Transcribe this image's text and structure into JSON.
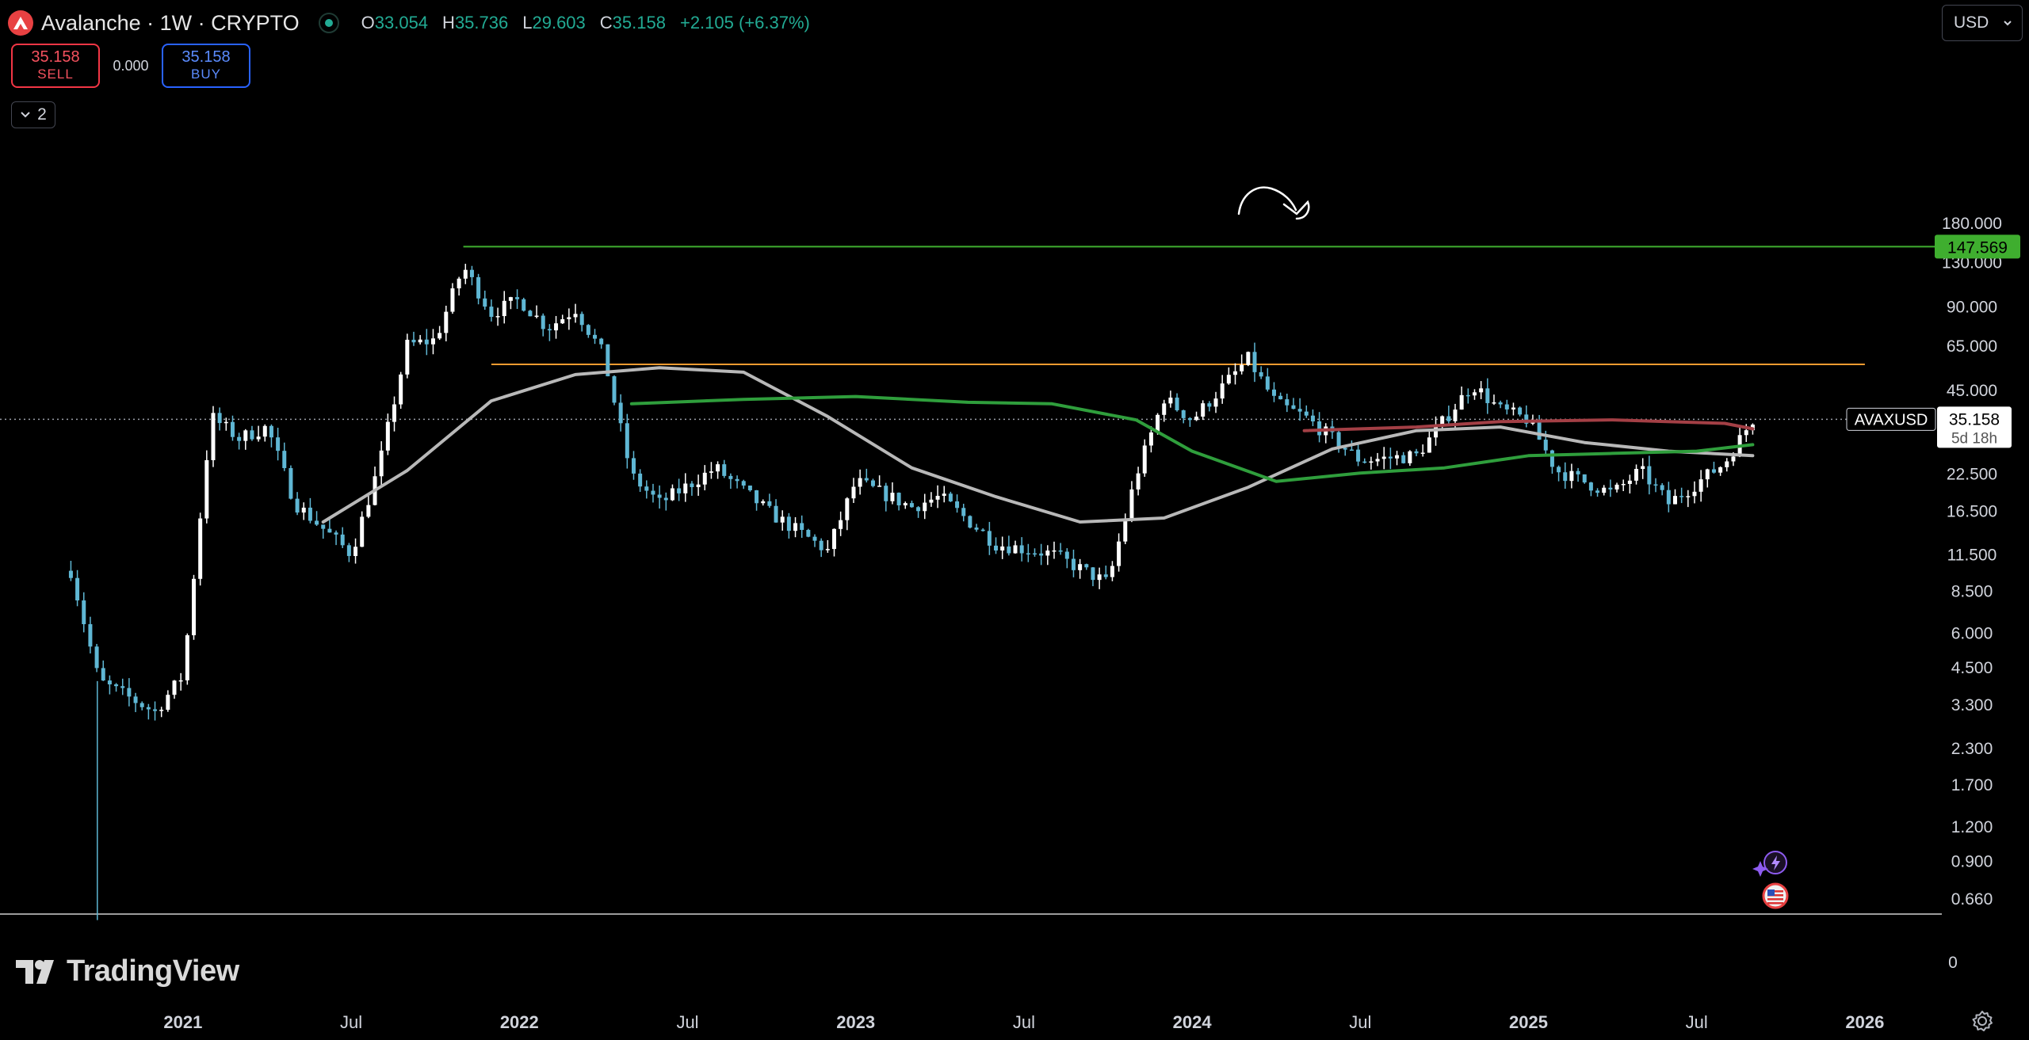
{
  "header": {
    "title": "Avalanche · 1W · CRYPTO",
    "ohlc": [
      {
        "key": "O",
        "value": "33.054"
      },
      {
        "key": "H",
        "value": "35.736"
      },
      {
        "key": "L",
        "value": "29.603"
      },
      {
        "key": "C",
        "value": "35.158"
      }
    ],
    "change": "+2.105 (+6.37%)"
  },
  "trade": {
    "sell_price": "35.158",
    "sell_label": "SELL",
    "spread": "0.000",
    "buy_price": "35.158",
    "buy_label": "BUY"
  },
  "collapse_count": "2",
  "currency": "USD",
  "brand": "TradingView",
  "colors": {
    "background": "#000000",
    "up_candle": "#ffffff",
    "down_candle": "#5fb7d4",
    "sma_short": "#b8b8b8",
    "sma_long": "#2f9e3c",
    "sma_red": "#a33f45",
    "resistance_green": "#3fae2f",
    "resistance_orange": "#f29b30"
  },
  "chart_data": {
    "type": "candlestick",
    "symbol": "AVAXUSD",
    "interval": "1W",
    "y_scale": "log",
    "y_tick_labels": [
      "180.000",
      "130.000",
      "90.000",
      "65.000",
      "45.000",
      "22.500",
      "16.500",
      "11.500",
      "8.500",
      "6.000",
      "4.500",
      "3.300",
      "2.300",
      "1.700",
      "1.200",
      "0.900",
      "0.660"
    ],
    "volume_pane_tick": "0",
    "x_tick_labels": [
      "2021",
      "Jul",
      "2022",
      "Jul",
      "2023",
      "Jul",
      "2024",
      "Jul",
      "2025",
      "Jul",
      "2026"
    ],
    "last_price": "35.158",
    "last_price_symbol": "AVAXUSD",
    "bar_countdown": "5d 18h",
    "horizontal_lines": [
      {
        "label": "147.569",
        "value": 147.569,
        "color": "#3fae2f",
        "from": "2021-11",
        "to": "2026-05"
      },
      {
        "value": 55.5,
        "color": "#f29b30",
        "from": "2021-12",
        "to": "2026-01"
      }
    ],
    "approx_weekly_closes": [
      {
        "date": "2020-09",
        "value": 10.0
      },
      {
        "date": "2020-10",
        "value": 4.0
      },
      {
        "date": "2020-12",
        "value": 3.1
      },
      {
        "date": "2021-01",
        "value": 4.2
      },
      {
        "date": "2021-02",
        "value": 36.0
      },
      {
        "date": "2021-03",
        "value": 30.0
      },
      {
        "date": "2021-04",
        "value": 33.0
      },
      {
        "date": "2021-05",
        "value": 17.5
      },
      {
        "date": "2021-07",
        "value": 11.5
      },
      {
        "date": "2021-08",
        "value": 24.0
      },
      {
        "date": "2021-09",
        "value": 65.0
      },
      {
        "date": "2021-10",
        "value": 68.0
      },
      {
        "date": "2021-11",
        "value": 125.0
      },
      {
        "date": "2021-12",
        "value": 85.0
      },
      {
        "date": "2022-01",
        "value": 95.0
      },
      {
        "date": "2022-02",
        "value": 75.0
      },
      {
        "date": "2022-03",
        "value": 88.0
      },
      {
        "date": "2022-04",
        "value": 60.0
      },
      {
        "date": "2022-05",
        "value": 22.0
      },
      {
        "date": "2022-06",
        "value": 17.5
      },
      {
        "date": "2022-08",
        "value": 23.5
      },
      {
        "date": "2022-10",
        "value": 16.0
      },
      {
        "date": "2022-12",
        "value": 11.8
      },
      {
        "date": "2023-01",
        "value": 21.0
      },
      {
        "date": "2023-03",
        "value": 17.0
      },
      {
        "date": "2023-04",
        "value": 18.5
      },
      {
        "date": "2023-06",
        "value": 12.5
      },
      {
        "date": "2023-08",
        "value": 11.5
      },
      {
        "date": "2023-10",
        "value": 9.0
      },
      {
        "date": "2023-11",
        "value": 22.0
      },
      {
        "date": "2023-12",
        "value": 42.0
      },
      {
        "date": "2024-01",
        "value": 35.0
      },
      {
        "date": "2024-03",
        "value": 58.0
      },
      {
        "date": "2024-04",
        "value": 40.0
      },
      {
        "date": "2024-05",
        "value": 36.0
      },
      {
        "date": "2024-07",
        "value": 25.0
      },
      {
        "date": "2024-09",
        "value": 26.0
      },
      {
        "date": "2024-11",
        "value": 47.0
      },
      {
        "date": "2024-12",
        "value": 38.0
      },
      {
        "date": "2025-01",
        "value": 35.0
      },
      {
        "date": "2025-02",
        "value": 23.0
      },
      {
        "date": "2025-04",
        "value": 19.0
      },
      {
        "date": "2025-05",
        "value": 23.0
      },
      {
        "date": "2025-06",
        "value": 17.5
      },
      {
        "date": "2025-08",
        "value": 24.5
      },
      {
        "date": "2025-09",
        "value": 35.158
      }
    ],
    "series": [
      {
        "line": "gray moving average",
        "color": "#b8b8b8",
        "points": [
          {
            "date": "2021-06",
            "value": 15.0
          },
          {
            "date": "2021-09",
            "value": 23.0
          },
          {
            "date": "2021-12",
            "value": 41.0
          },
          {
            "date": "2022-03",
            "value": 51.0
          },
          {
            "date": "2022-06",
            "value": 54.0
          },
          {
            "date": "2022-09",
            "value": 52.0
          },
          {
            "date": "2022-12",
            "value": 36.0
          },
          {
            "date": "2023-03",
            "value": 23.5
          },
          {
            "date": "2023-06",
            "value": 18.5
          },
          {
            "date": "2023-09",
            "value": 15.0
          },
          {
            "date": "2023-12",
            "value": 15.5
          },
          {
            "date": "2024-03",
            "value": 20.0
          },
          {
            "date": "2024-06",
            "value": 27.5
          },
          {
            "date": "2024-09",
            "value": 32.0
          },
          {
            "date": "2024-12",
            "value": 33.0
          },
          {
            "date": "2025-03",
            "value": 29.0
          },
          {
            "date": "2025-06",
            "value": 27.0
          },
          {
            "date": "2025-09",
            "value": 26.0
          }
        ]
      },
      {
        "line": "green moving average",
        "color": "#2f9e3c",
        "points": [
          {
            "date": "2022-05",
            "value": 40.0
          },
          {
            "date": "2022-09",
            "value": 41.5
          },
          {
            "date": "2023-01",
            "value": 42.5
          },
          {
            "date": "2023-05",
            "value": 40.5
          },
          {
            "date": "2023-08",
            "value": 40.0
          },
          {
            "date": "2023-11",
            "value": 35.0
          },
          {
            "date": "2024-01",
            "value": 27.0
          },
          {
            "date": "2024-04",
            "value": 21.0
          },
          {
            "date": "2024-07",
            "value": 22.5
          },
          {
            "date": "2024-10",
            "value": 23.5
          },
          {
            "date": "2025-01",
            "value": 26.0
          },
          {
            "date": "2025-04",
            "value": 26.5
          },
          {
            "date": "2025-07",
            "value": 27.0
          },
          {
            "date": "2025-09",
            "value": 28.5
          }
        ]
      },
      {
        "line": "red moving average",
        "color": "#a33f45",
        "points": [
          {
            "date": "2024-05",
            "value": 32.0
          },
          {
            "date": "2024-09",
            "value": 33.0
          },
          {
            "date": "2024-12",
            "value": 34.5
          },
          {
            "date": "2025-04",
            "value": 35.0
          },
          {
            "date": "2025-08",
            "value": 34.0
          },
          {
            "date": "2025-09",
            "value": 32.5
          }
        ]
      }
    ]
  }
}
